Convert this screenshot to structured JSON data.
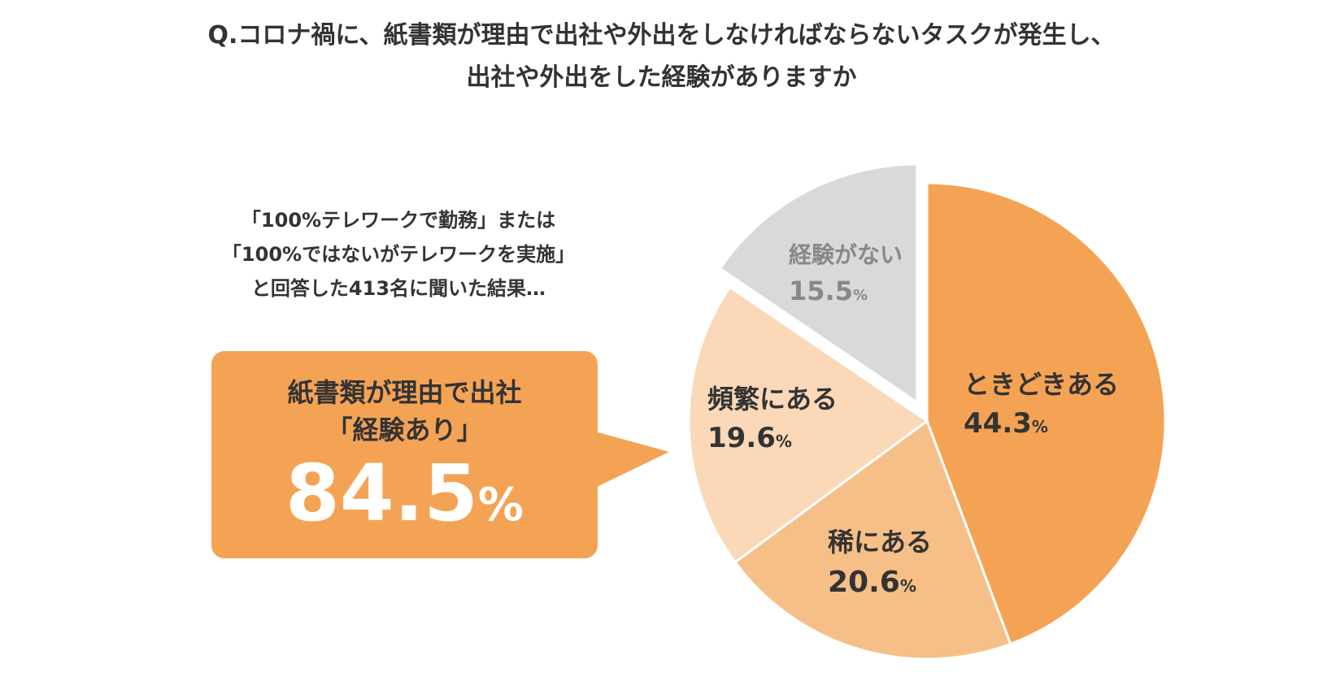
{
  "title": {
    "line1": "Q.コロナ禍に、紙書類が理由で出社や外出をしなければならないタスクが発生し、",
    "line2": "出社や外出をした経験がありますか"
  },
  "note": {
    "line1": "「100%テレワークで勤務」または",
    "line2": "「100%ではないがテレワークを実施」",
    "line3": "と回答した413名に聞いた結果…"
  },
  "callout": {
    "line1": "紙書類が理由で出社",
    "line2": "「経験あり」",
    "value": "84.5",
    "unit": "%"
  },
  "chart_data": {
    "type": "pie",
    "unit": "%",
    "slices": [
      {
        "label": "ときどきある",
        "value": 44.3,
        "value_text": "44.3",
        "color": "#f4a355",
        "text_color": "#333333"
      },
      {
        "label": "稀にある",
        "value": 20.6,
        "value_text": "20.6",
        "color": "#f6bf88",
        "text_color": "#333333"
      },
      {
        "label": "頻繁にある",
        "value": 19.6,
        "value_text": "19.6",
        "color": "#fad8b8",
        "text_color": "#333333"
      },
      {
        "label": "経験がない",
        "value": 15.5,
        "value_text": "15.5",
        "color": "#d9d9d9",
        "text_color": "#888888",
        "exploded": true
      }
    ]
  }
}
